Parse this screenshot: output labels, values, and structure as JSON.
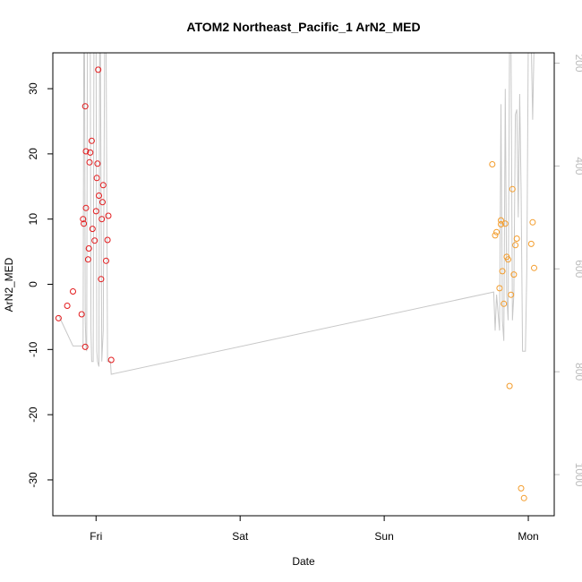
{
  "chart_data": {
    "type": "scatter",
    "title": "ATOM2 Northeast_Pacific_1 ArN2_MED",
    "xlabel": "Date",
    "ylabel": "ArN2_MED",
    "xlim": [
      -0.3,
      3.18
    ],
    "ylim": [
      -35.5,
      35.5
    ],
    "y2lim": [
      1080,
      180
    ],
    "x_ticks": [
      {
        "value": 0,
        "label": "Fri"
      },
      {
        "value": 1,
        "label": "Sat"
      },
      {
        "value": 2,
        "label": "Sun"
      },
      {
        "value": 3,
        "label": "Mon"
      }
    ],
    "y_ticks": [
      {
        "value": 30,
        "label": "30"
      },
      {
        "value": 20,
        "label": "20"
      },
      {
        "value": 10,
        "label": "10"
      },
      {
        "value": 0,
        "label": "0"
      },
      {
        "value": -10,
        "label": "-10"
      },
      {
        "value": -20,
        "label": "-20"
      },
      {
        "value": -30,
        "label": "-30"
      }
    ],
    "y2_ticks": [
      {
        "value": 200,
        "label": "200"
      },
      {
        "value": 400,
        "label": "400"
      },
      {
        "value": 600,
        "label": "600"
      },
      {
        "value": 800,
        "label": "800"
      },
      {
        "value": 1000,
        "label": "1000"
      }
    ],
    "grid": false,
    "colors": {
      "series1": "#e31a1c",
      "series2": "#f39c2b",
      "line": "#c8c8c8",
      "right_axis": "#bbbbbb"
    },
    "series": [
      {
        "color": "#e31a1c",
        "points": [
          {
            "x": -0.26,
            "y": -5.2
          },
          {
            "x": -0.2,
            "y": -3.3
          },
          {
            "x": -0.16,
            "y": -1.1
          },
          {
            "x": -0.1,
            "y": -4.6
          },
          {
            "x": -0.09,
            "y": 10.0
          },
          {
            "x": -0.085,
            "y": 9.3
          },
          {
            "x": -0.075,
            "y": -9.6
          },
          {
            "x": -0.075,
            "y": 27.3
          },
          {
            "x": -0.07,
            "y": 20.4
          },
          {
            "x": -0.07,
            "y": 11.7
          },
          {
            "x": -0.055,
            "y": 3.8
          },
          {
            "x": -0.05,
            "y": 5.5
          },
          {
            "x": -0.045,
            "y": 18.7
          },
          {
            "x": -0.04,
            "y": 20.2
          },
          {
            "x": -0.03,
            "y": 22.0
          },
          {
            "x": -0.025,
            "y": 8.5
          },
          {
            "x": -0.01,
            "y": 6.7
          },
          {
            "x": 0.0,
            "y": 11.2
          },
          {
            "x": 0.005,
            "y": 16.3
          },
          {
            "x": 0.01,
            "y": 18.5
          },
          {
            "x": 0.015,
            "y": 32.9
          },
          {
            "x": 0.02,
            "y": 13.6
          },
          {
            "x": 0.035,
            "y": 0.8
          },
          {
            "x": 0.04,
            "y": 10.0
          },
          {
            "x": 0.045,
            "y": 12.6
          },
          {
            "x": 0.05,
            "y": 15.2
          },
          {
            "x": 0.07,
            "y": 3.6
          },
          {
            "x": 0.08,
            "y": 6.8
          },
          {
            "x": 0.085,
            "y": 10.5
          },
          {
            "x": 0.105,
            "y": -11.6
          }
        ]
      },
      {
        "color": "#f39c2b",
        "points": [
          {
            "x": 2.75,
            "y": 18.4
          },
          {
            "x": 2.77,
            "y": 7.5
          },
          {
            "x": 2.78,
            "y": 8.0
          },
          {
            "x": 2.8,
            "y": -0.6
          },
          {
            "x": 2.81,
            "y": 9.8
          },
          {
            "x": 2.81,
            "y": 9.2
          },
          {
            "x": 2.82,
            "y": 2.0
          },
          {
            "x": 2.83,
            "y": -3.0
          },
          {
            "x": 2.84,
            "y": 9.3
          },
          {
            "x": 2.85,
            "y": 4.2
          },
          {
            "x": 2.86,
            "y": 3.8
          },
          {
            "x": 2.87,
            "y": -15.6
          },
          {
            "x": 2.88,
            "y": -1.6
          },
          {
            "x": 2.89,
            "y": 14.6
          },
          {
            "x": 2.9,
            "y": 1.5
          },
          {
            "x": 2.91,
            "y": 6.0
          },
          {
            "x": 2.92,
            "y": 7.0
          },
          {
            "x": 2.95,
            "y": -31.3
          },
          {
            "x": 2.97,
            "y": -32.8
          },
          {
            "x": 3.02,
            "y": 6.2
          },
          {
            "x": 3.03,
            "y": 9.5
          },
          {
            "x": 3.04,
            "y": 2.5
          }
        ]
      }
    ],
    "line": {
      "axis": "right",
      "color": "#c8c8c8",
      "points": [
        {
          "x": -0.26,
          "y": 690
        },
        {
          "x": -0.16,
          "y": 750
        },
        {
          "x": -0.09,
          "y": 750
        },
        {
          "x": -0.085,
          "y": 160
        },
        {
          "x": -0.08,
          "y": 160
        },
        {
          "x": -0.075,
          "y": 700
        },
        {
          "x": -0.07,
          "y": 750
        },
        {
          "x": -0.065,
          "y": 760
        },
        {
          "x": -0.06,
          "y": 160
        },
        {
          "x": -0.04,
          "y": 160
        },
        {
          "x": -0.035,
          "y": 720
        },
        {
          "x": -0.03,
          "y": 780
        },
        {
          "x": -0.02,
          "y": 780
        },
        {
          "x": -0.015,
          "y": 160
        },
        {
          "x": 0.0,
          "y": 160
        },
        {
          "x": 0.005,
          "y": 760
        },
        {
          "x": 0.01,
          "y": 780
        },
        {
          "x": 0.02,
          "y": 790
        },
        {
          "x": 0.025,
          "y": 160
        },
        {
          "x": 0.03,
          "y": 160
        },
        {
          "x": 0.04,
          "y": 780
        },
        {
          "x": 0.05,
          "y": 720
        },
        {
          "x": 0.06,
          "y": 160
        },
        {
          "x": 0.07,
          "y": 160
        },
        {
          "x": 0.08,
          "y": 780
        },
        {
          "x": 0.1,
          "y": 780
        },
        {
          "x": 0.105,
          "y": 805
        },
        {
          "x": 2.76,
          "y": 645
        },
        {
          "x": 2.77,
          "y": 720
        },
        {
          "x": 2.78,
          "y": 650
        },
        {
          "x": 2.8,
          "y": 720
        },
        {
          "x": 2.81,
          "y": 280
        },
        {
          "x": 2.82,
          "y": 700
        },
        {
          "x": 2.83,
          "y": 740
        },
        {
          "x": 2.84,
          "y": 250
        },
        {
          "x": 2.85,
          "y": 650
        },
        {
          "x": 2.86,
          "y": 700
        },
        {
          "x": 2.87,
          "y": 160
        },
        {
          "x": 2.88,
          "y": 160
        },
        {
          "x": 2.89,
          "y": 700
        },
        {
          "x": 2.9,
          "y": 650
        },
        {
          "x": 2.91,
          "y": 300
        },
        {
          "x": 2.92,
          "y": 290
        },
        {
          "x": 2.93,
          "y": 500
        },
        {
          "x": 2.94,
          "y": 260
        },
        {
          "x": 2.95,
          "y": 450
        },
        {
          "x": 2.96,
          "y": 760
        },
        {
          "x": 2.98,
          "y": 760
        },
        {
          "x": 2.99,
          "y": 600
        },
        {
          "x": 3.0,
          "y": 160
        },
        {
          "x": 3.02,
          "y": 160
        },
        {
          "x": 3.03,
          "y": 310
        },
        {
          "x": 3.04,
          "y": 160
        }
      ]
    }
  }
}
